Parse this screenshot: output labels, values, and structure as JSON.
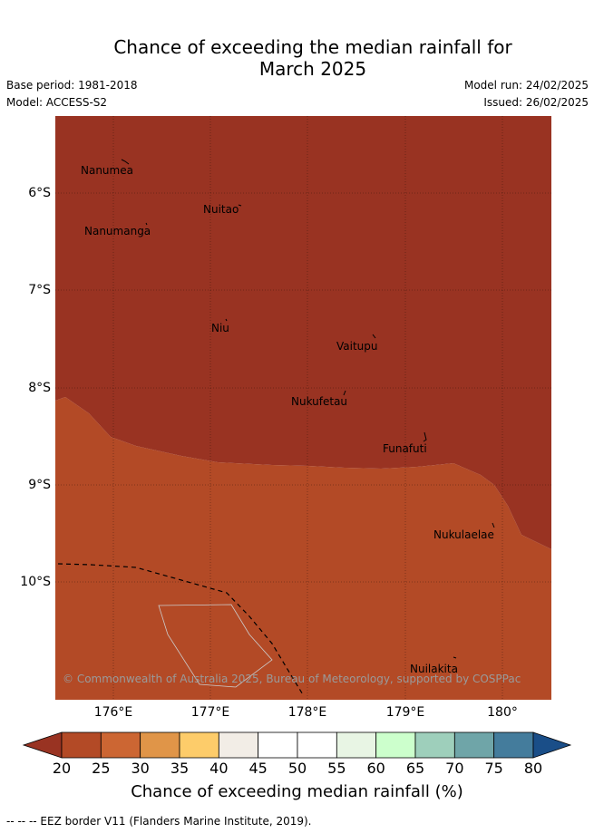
{
  "header": {
    "title_line1": "Chance of exceeding the median rainfall for",
    "title_line2": "March 2025",
    "base_period": "Base period: 1981-2018",
    "model": "Model: ACCESS-S2",
    "model_run": "Model run: 24/02/2025",
    "issued": "Issued: 26/02/2025"
  },
  "map": {
    "lat_labels": [
      "6°S",
      "7°S",
      "8°S",
      "9°S",
      "10°S"
    ],
    "lon_labels": [
      "176°E",
      "177°E",
      "178°E",
      "179°E",
      "180°"
    ],
    "places": [
      {
        "name": "Nanumea"
      },
      {
        "name": "Nuitao"
      },
      {
        "name": "Nanumanga"
      },
      {
        "name": "Niu"
      },
      {
        "name": "Vaitupu"
      },
      {
        "name": "Nukufetau"
      },
      {
        "name": "Funafuti"
      },
      {
        "name": "Nukulaelae"
      },
      {
        "name": "Nuilakita"
      }
    ],
    "copyright": "© Commonwealth of Australia 2025, Bureau of Meteorology, supported by COSPPac"
  },
  "colorbar": {
    "ticks": [
      "20",
      "25",
      "30",
      "35",
      "40",
      "45",
      "50",
      "55",
      "60",
      "65",
      "70",
      "75",
      "80"
    ],
    "colors": [
      "#b34a26",
      "#cc6633",
      "#e09548",
      "#fdcc6a",
      "#f2ede6",
      "#ffffff",
      "#ffffff",
      "#e8f5e4",
      "#ccffcc",
      "#9ecfbb",
      "#6fa5a8",
      "#447c9c"
    ],
    "low_extend_color": "#993322",
    "high_extend_color": "#1a4e88",
    "title": "Chance of exceeding median rainfall (%)"
  },
  "footnote": "--  --  -- EEZ border V11 (Flanders Marine Institute, 2019)."
}
